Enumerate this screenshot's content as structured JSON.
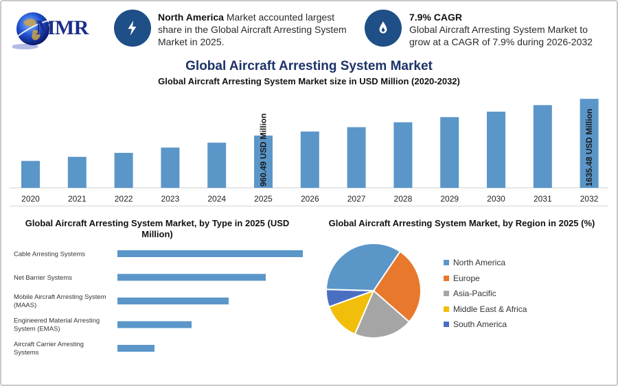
{
  "brand": {
    "logo_text": "MMR"
  },
  "info": [
    {
      "icon": "lightning-icon",
      "bold": "North America",
      "text": " Market accounted largest share in the Global Aircraft Arresting System Market in 2025."
    },
    {
      "icon": "drop-icon",
      "bold": "7.9% CAGR",
      "text": "Global Aircraft Arresting System Market to grow at a CAGR of 7.9% during 2026-2032"
    }
  ],
  "main_title": "Global Aircraft Arresting System Market",
  "chart_data": [
    {
      "type": "bar",
      "title": "Global Aircraft Arresting System Market size in USD Million (2020-2032)",
      "categories": [
        "2020",
        "2021",
        "2022",
        "2023",
        "2024",
        "2025",
        "2026",
        "2027",
        "2028",
        "2029",
        "2030",
        "2031",
        "2032"
      ],
      "values": [
        495,
        570,
        643,
        740,
        830,
        960.49,
        1035,
        1115,
        1205,
        1300,
        1400,
        1520,
        1635.48
      ],
      "data_labels": {
        "2025": "960.49 USD Million",
        "2032": "1635.48 USD Million"
      },
      "color": "#5b96c9",
      "grid": false,
      "ylim": [
        0,
        1650
      ]
    },
    {
      "type": "bar",
      "orientation": "horizontal",
      "title": "Global Aircraft Arresting System Market, by Type in 2025 (USD Million)",
      "categories": [
        "Cable Arresting Systems",
        "Net Barrier Systems",
        "Mobile Aircraft Arresting System (MAAS)",
        "Engineered Material Arresting System (EMAS)",
        "Aircraft Carrier Arresting Systems"
      ],
      "values": [
        290,
        232,
        174,
        116,
        58
      ],
      "color": "#5b96c9",
      "xlim": [
        0,
        290
      ]
    },
    {
      "type": "pie",
      "title": "Global Aircraft Arresting System Market, by Region in 2025 (%)",
      "labels": [
        "North America",
        "Europe",
        "Asia-Pacific",
        "Middle East & Africa",
        "South America"
      ],
      "values": [
        34,
        27,
        20,
        13,
        6
      ],
      "colors": [
        "#5b96c9",
        "#e8782c",
        "#a5a5a5",
        "#f2be0c",
        "#4a6fc2"
      ],
      "legend": "right"
    }
  ]
}
